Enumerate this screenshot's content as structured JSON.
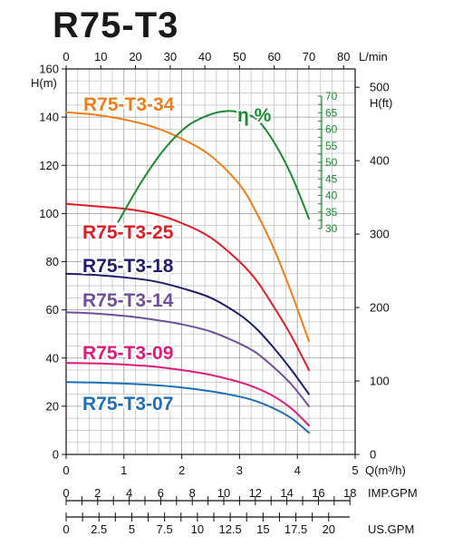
{
  "title": "R75-T3",
  "chart_data": {
    "type": "line",
    "title": "R75-T3",
    "x_axes": {
      "lpm": {
        "label": "L/min",
        "ticks": [
          0,
          10,
          20,
          30,
          40,
          50,
          60,
          70,
          80
        ]
      },
      "q": {
        "label": "Q(m³/h)",
        "ticks": [
          0,
          1,
          2,
          3,
          4,
          5
        ],
        "xlim": [
          0,
          5
        ]
      },
      "imp": {
        "label": "IMP.GPM",
        "ticks": [
          0,
          2,
          4,
          6,
          8,
          10,
          12,
          14,
          16,
          18
        ]
      },
      "us": {
        "label": "US.GPM",
        "ticks": [
          "0",
          "2.5",
          "5",
          "7.5",
          "10",
          "12.5",
          "15",
          "17.5",
          "20"
        ],
        "tick_values": [
          0,
          2.5,
          5,
          7.5,
          10,
          12.5,
          15,
          17.5,
          20
        ]
      }
    },
    "y_axes": {
      "h_m": {
        "label": "H(m)",
        "ticks": [
          0,
          20,
          40,
          60,
          80,
          100,
          120,
          140,
          160
        ],
        "ylim": [
          0,
          160
        ]
      },
      "h_ft": {
        "label": "H(ft)",
        "ticks": [
          0,
          100,
          200,
          300,
          400,
          500
        ]
      },
      "eff": {
        "label": "η %",
        "ticks": [
          30,
          35,
          40,
          45,
          50,
          55,
          60,
          65,
          70
        ]
      }
    },
    "grid": true,
    "series": [
      {
        "name": "R75-T3-34",
        "color": "#f07d1a",
        "x": [
          0,
          0.5,
          1,
          1.5,
          2,
          2.5,
          3,
          3.3,
          3.6,
          3.9,
          4.2
        ],
        "y": [
          142,
          141,
          139,
          136,
          131,
          124,
          112,
          100,
          85,
          67,
          47
        ]
      },
      {
        "name": "R75-T3-25",
        "color": "#e21b23",
        "x": [
          0,
          0.5,
          1,
          1.5,
          2,
          2.5,
          3,
          3.3,
          3.6,
          3.9,
          4.2
        ],
        "y": [
          104,
          103,
          102,
          100,
          96,
          90,
          80,
          72,
          61,
          49,
          35
        ]
      },
      {
        "name": "R75-T3-18",
        "color": "#1f1e6e",
        "x": [
          0,
          0.5,
          1,
          1.5,
          2,
          2.5,
          3,
          3.3,
          3.6,
          3.9,
          4.2
        ],
        "y": [
          75,
          74.5,
          73.5,
          72,
          69,
          65,
          58,
          52,
          44,
          35,
          25
        ]
      },
      {
        "name": "R75-T3-14",
        "color": "#6f4f9c",
        "x": [
          0,
          0.5,
          1,
          1.5,
          2,
          2.5,
          3,
          3.3,
          3.6,
          3.9,
          4.2
        ],
        "y": [
          59,
          58.5,
          57.5,
          56,
          54,
          51,
          46,
          42,
          36,
          29,
          20
        ]
      },
      {
        "name": "R75-T3-09",
        "color": "#e01a7a",
        "x": [
          0,
          0.5,
          1,
          1.5,
          2,
          2.5,
          3,
          3.3,
          3.6,
          3.9,
          4.2
        ],
        "y": [
          38,
          37.8,
          37.3,
          36.5,
          35,
          33,
          30,
          27.5,
          24,
          19,
          12
        ]
      },
      {
        "name": "R75-T3-07",
        "color": "#1e6fb5",
        "x": [
          0,
          0.5,
          1,
          1.5,
          2,
          2.5,
          3,
          3.3,
          3.6,
          3.9,
          4.2
        ],
        "y": [
          30,
          29.8,
          29.4,
          28.8,
          27.8,
          26.2,
          24,
          22,
          19,
          15,
          9
        ]
      },
      {
        "name": "η %",
        "color": "#1a8a2e",
        "axis": "eff",
        "x": [
          0.9,
          1.3,
          1.7,
          2.1,
          2.5,
          2.8,
          3.0,
          3.3,
          3.6,
          3.9,
          4.2
        ],
        "y": [
          32,
          44,
          54,
          61,
          64.5,
          65.5,
          65,
          63,
          56,
          46,
          33
        ]
      }
    ]
  }
}
